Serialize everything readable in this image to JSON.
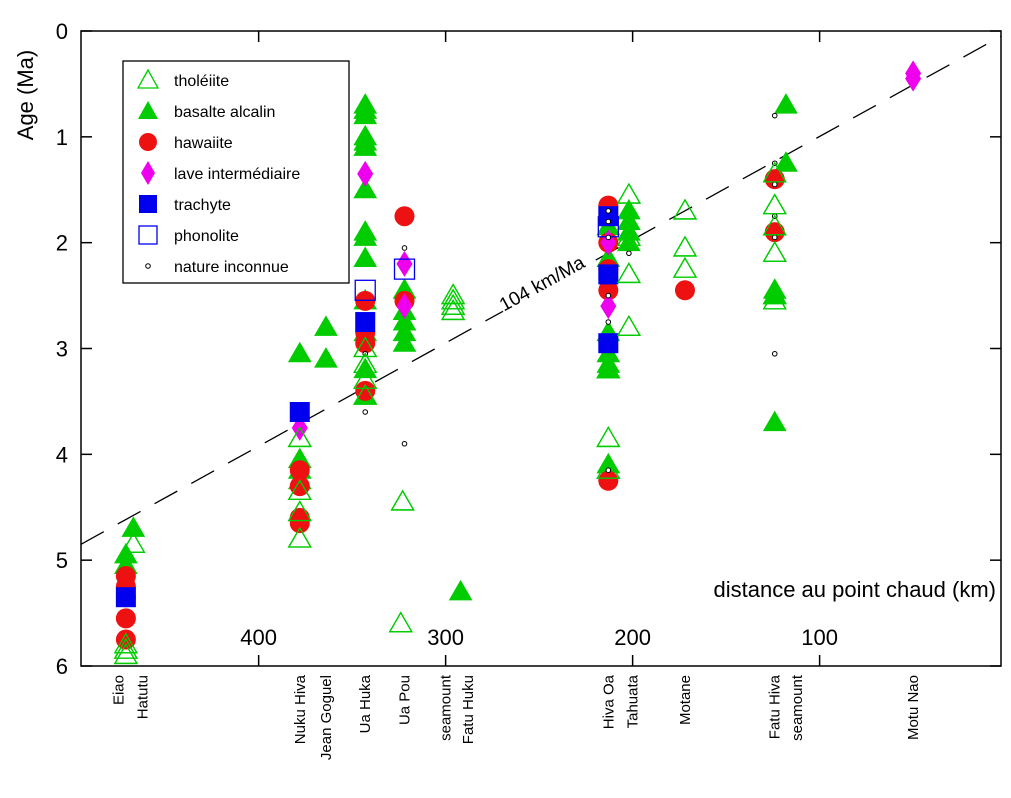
{
  "chart_data": {
    "type": "scatter",
    "title": "",
    "ylabel": "Age (Ma)",
    "xlabel": "distance au point chaud (km)",
    "x_axis": "reversed",
    "xlim": [
      495,
      3
    ],
    "ylim": [
      0,
      6
    ],
    "y_ticks": [
      0,
      1,
      2,
      3,
      4,
      5,
      6
    ],
    "x_ticks": [
      400,
      300,
      200,
      100
    ],
    "grid": false,
    "legend_position": "top-left",
    "trend_line": {
      "label": "104 km/Ma",
      "style": "dashed",
      "points": [
        [
          495,
          4.85
        ],
        [
          3,
          0.05
        ]
      ]
    },
    "islands": [
      {
        "name": "Eiao",
        "x": 475
      },
      {
        "name": "Hatutu",
        "x": 462
      },
      {
        "name": "Nuku Hiva",
        "x": 378
      },
      {
        "name": "Jean Goguel",
        "x": 364
      },
      {
        "name": "Ua Huka",
        "x": 343
      },
      {
        "name": "Ua Pou",
        "x": 322
      },
      {
        "name": "seamount",
        "x": 300
      },
      {
        "name": "Fatu Huku",
        "x": 288
      },
      {
        "name": "Hiva Oa",
        "x": 213
      },
      {
        "name": "Tahuata",
        "x": 200
      },
      {
        "name": "Motane",
        "x": 172
      },
      {
        "name": "Fatu Hiva",
        "x": 124
      },
      {
        "name": "seamount",
        "x": 112
      },
      {
        "name": "Motu Nao",
        "x": 50
      }
    ],
    "series": [
      {
        "name": "tholéiite",
        "marker": "triangle-open",
        "color": "#00cc00",
        "points": [
          [
            471,
            5.8
          ],
          [
            471,
            5.85
          ],
          [
            471,
            5.9
          ],
          [
            467,
            4.85
          ],
          [
            378,
            4.8
          ],
          [
            378,
            4.55
          ],
          [
            378,
            4.35
          ],
          [
            378,
            3.85
          ],
          [
            343,
            3.0
          ],
          [
            343,
            3.15
          ],
          [
            343,
            3.3
          ],
          [
            343,
            3.45
          ],
          [
            323,
            4.45
          ],
          [
            324,
            5.6
          ],
          [
            296,
            2.5
          ],
          [
            296,
            2.55
          ],
          [
            296,
            2.6
          ],
          [
            296,
            2.65
          ],
          [
            213,
            3.85
          ],
          [
            213,
            4.15
          ],
          [
            213,
            3.2
          ],
          [
            202,
            1.55
          ],
          [
            202,
            1.95
          ],
          [
            202,
            2.3
          ],
          [
            202,
            2.8
          ],
          [
            172,
            1.7
          ],
          [
            172,
            2.05
          ],
          [
            172,
            2.25
          ],
          [
            124,
            1.35
          ],
          [
            124,
            1.65
          ],
          [
            124,
            1.85
          ],
          [
            124,
            2.1
          ],
          [
            124,
            2.5
          ],
          [
            124,
            2.55
          ]
        ]
      },
      {
        "name": "basalte alcalin",
        "marker": "triangle-filled",
        "color": "#00cc00",
        "points": [
          [
            471,
            4.95
          ],
          [
            471,
            5.05
          ],
          [
            467,
            4.7
          ],
          [
            378,
            3.05
          ],
          [
            378,
            4.05
          ],
          [
            378,
            4.15
          ],
          [
            378,
            4.25
          ],
          [
            364,
            2.8
          ],
          [
            364,
            3.1
          ],
          [
            343,
            0.7
          ],
          [
            343,
            0.75
          ],
          [
            343,
            0.8
          ],
          [
            343,
            1.0
          ],
          [
            343,
            1.05
          ],
          [
            343,
            1.1
          ],
          [
            343,
            1.5
          ],
          [
            343,
            1.9
          ],
          [
            343,
            1.95
          ],
          [
            343,
            2.15
          ],
          [
            343,
            2.55
          ],
          [
            343,
            2.85
          ],
          [
            343,
            3.2
          ],
          [
            343,
            3.45
          ],
          [
            322,
            2.45
          ],
          [
            322,
            2.65
          ],
          [
            322,
            2.75
          ],
          [
            322,
            2.85
          ],
          [
            322,
            2.95
          ],
          [
            292,
            5.3
          ],
          [
            213,
            1.85
          ],
          [
            213,
            2.15
          ],
          [
            213,
            2.85
          ],
          [
            213,
            3.05
          ],
          [
            213,
            3.15
          ],
          [
            213,
            3.2
          ],
          [
            213,
            4.1
          ],
          [
            202,
            1.7
          ],
          [
            202,
            1.8
          ],
          [
            202,
            1.9
          ],
          [
            202,
            2.0
          ],
          [
            124,
            2.45
          ],
          [
            124,
            2.5
          ],
          [
            124,
            3.7
          ],
          [
            118,
            0.7
          ],
          [
            118,
            1.25
          ]
        ]
      },
      {
        "name": "hawaiite",
        "marker": "circle-filled",
        "color": "#ee1111",
        "points": [
          [
            471,
            5.15
          ],
          [
            471,
            5.25
          ],
          [
            471,
            5.35
          ],
          [
            471,
            5.55
          ],
          [
            471,
            5.75
          ],
          [
            378,
            4.15
          ],
          [
            378,
            4.3
          ],
          [
            378,
            4.6
          ],
          [
            378,
            4.65
          ],
          [
            343,
            2.55
          ],
          [
            343,
            2.85
          ],
          [
            343,
            2.95
          ],
          [
            343,
            3.4
          ],
          [
            322,
            1.75
          ],
          [
            322,
            2.55
          ],
          [
            213,
            1.65
          ],
          [
            213,
            2.0
          ],
          [
            213,
            2.25
          ],
          [
            213,
            2.45
          ],
          [
            213,
            4.25
          ],
          [
            172,
            2.45
          ],
          [
            124,
            1.4
          ],
          [
            124,
            1.9
          ]
        ]
      },
      {
        "name": "lave intermédiaire",
        "marker": "diamond-filled",
        "color": "#ee00ee",
        "points": [
          [
            378,
            3.75
          ],
          [
            343,
            1.35
          ],
          [
            322,
            2.2
          ],
          [
            322,
            2.6
          ],
          [
            213,
            2.0
          ],
          [
            213,
            2.6
          ],
          [
            50,
            0.4
          ],
          [
            50,
            0.45
          ]
        ]
      },
      {
        "name": "trachyte",
        "marker": "square-filled",
        "color": "#0000ee",
        "points": [
          [
            471,
            5.35
          ],
          [
            378,
            3.6
          ],
          [
            343,
            2.75
          ],
          [
            213,
            1.75
          ],
          [
            213,
            2.3
          ],
          [
            213,
            2.95
          ]
        ]
      },
      {
        "name": "phonolite",
        "marker": "square-open",
        "color": "#0000ee",
        "points": [
          [
            343,
            2.45
          ],
          [
            322,
            2.25
          ],
          [
            213,
            1.85
          ]
        ]
      },
      {
        "name": "nature inconnue",
        "marker": "circle-small-open",
        "color": "#000000",
        "points": [
          [
            343,
            3.05
          ],
          [
            343,
            3.6
          ],
          [
            322,
            2.05
          ],
          [
            322,
            3.9
          ],
          [
            213,
            1.7
          ],
          [
            213,
            1.8
          ],
          [
            213,
            1.95
          ],
          [
            213,
            2.5
          ],
          [
            213,
            2.75
          ],
          [
            213,
            4.15
          ],
          [
            202,
            2.1
          ],
          [
            124,
            0.8
          ],
          [
            124,
            1.25
          ],
          [
            124,
            1.45
          ],
          [
            124,
            1.75
          ],
          [
            124,
            1.95
          ],
          [
            124,
            3.05
          ]
        ]
      }
    ]
  }
}
